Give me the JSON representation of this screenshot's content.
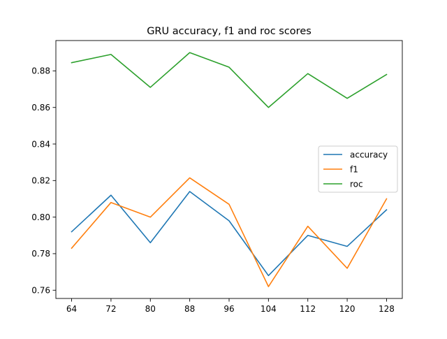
{
  "chart_data": {
    "type": "line",
    "title": "GRU accuracy, f1 and roc scores",
    "xlabel": "",
    "ylabel": "",
    "x": [
      64,
      72,
      80,
      88,
      96,
      104,
      112,
      120,
      128
    ],
    "xticks": [
      "64",
      "72",
      "80",
      "88",
      "96",
      "104",
      "112",
      "120",
      "128"
    ],
    "yticks": [
      "0.76",
      "0.78",
      "0.80",
      "0.82",
      "0.84",
      "0.86",
      "0.88"
    ],
    "ytick_values": [
      0.76,
      0.78,
      0.8,
      0.82,
      0.84,
      0.86,
      0.88
    ],
    "xlim": [
      60.8,
      131.2
    ],
    "ylim": [
      0.7555,
      0.8966
    ],
    "grid": false,
    "legend": "center-right",
    "series": [
      {
        "name": "accuracy",
        "color": "#1f77b4",
        "values": [
          0.792,
          0.812,
          0.786,
          0.814,
          0.798,
          0.768,
          0.79,
          0.784,
          0.804
        ]
      },
      {
        "name": "f1",
        "color": "#ff7f0e",
        "values": [
          0.783,
          0.808,
          0.8,
          0.8215,
          0.807,
          0.762,
          0.795,
          0.772,
          0.81
        ]
      },
      {
        "name": "roc",
        "color": "#2ca02c",
        "values": [
          0.8845,
          0.889,
          0.871,
          0.89,
          0.882,
          0.86,
          0.8785,
          0.865,
          0.878
        ]
      }
    ]
  }
}
